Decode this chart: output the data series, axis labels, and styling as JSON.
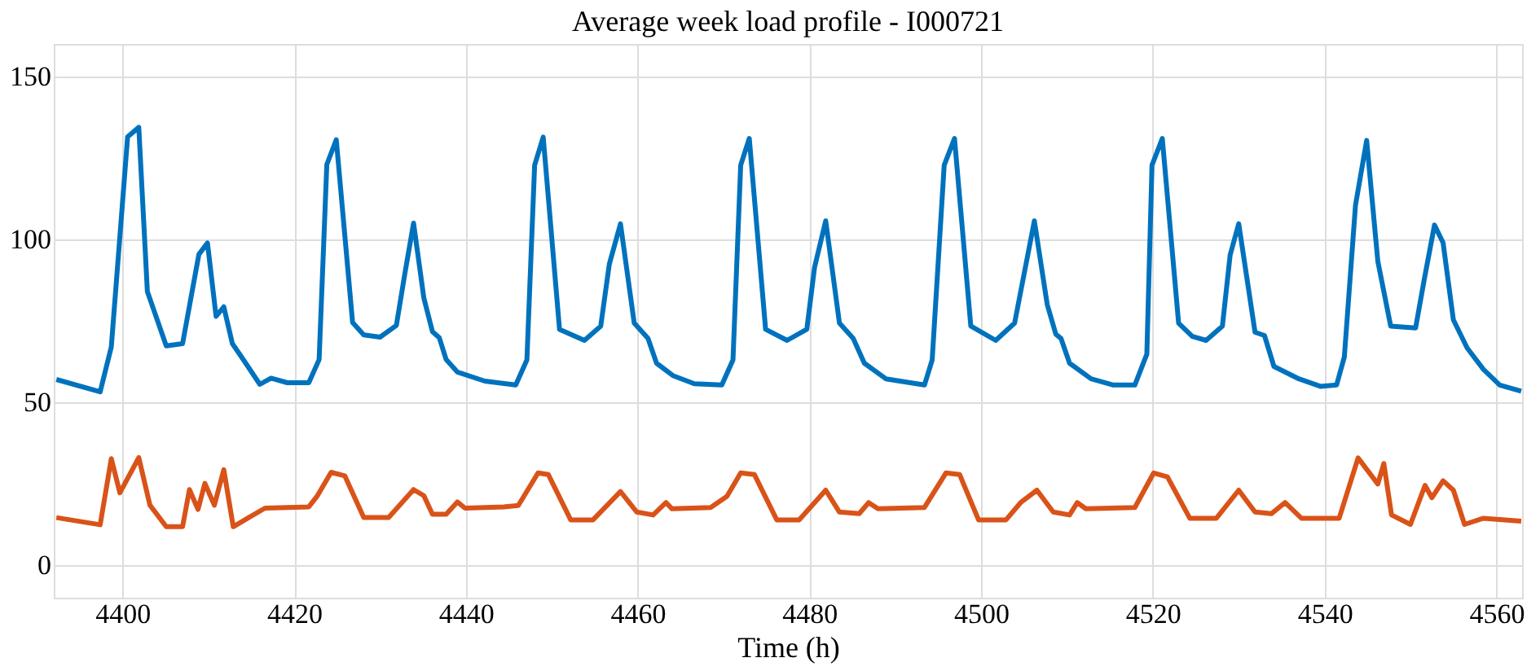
{
  "chart_data": {
    "type": "line",
    "title": "Average week load profile - I000721",
    "xlabel": "Time (h)",
    "xlim": [
      4392,
      4563
    ],
    "xticks": [
      4400,
      4420,
      4440,
      4460,
      4480,
      4500,
      4520,
      4540,
      4560
    ],
    "ylim": [
      -10,
      160
    ],
    "yticks": [
      0,
      50,
      100,
      150
    ],
    "grid": true,
    "marker": "none",
    "line_style": "solid",
    "series": [
      {
        "color": "#0072bd",
        "x": [
          4392.3,
          4397.4,
          4398.7,
          4400.6,
          4401.9,
          4402.9,
          4405.1,
          4407,
          4408.9,
          4409.9,
          4410.9,
          4411.8,
          4412.8,
          4414.1,
          4416,
          4417.3,
          4419.2,
          4421.7,
          4422.9,
          4423.8,
          4424.9,
          4426.8,
          4428.1,
          4430,
          4431.9,
          4432.9,
          4433.9,
          4435.1,
          4436.1,
          4436.9,
          4437.7,
          4439,
          4442.2,
          4445.8,
          4447.1,
          4448,
          4449,
          4450.9,
          4453.8,
          4455.7,
          4456.7,
          4458,
          4459.6,
          4461.2,
          4462.2,
          4464.1,
          4466.6,
          4469.8,
          4471.1,
          4472,
          4473,
          4474.9,
          4477.4,
          4479.7,
          4480.6,
          4481.9,
          4483.5,
          4485.1,
          4486.4,
          4488.9,
          4493.4,
          4494.3,
          4495.7,
          4496.9,
          4498.8,
          4501.7,
          4503.9,
          4506.2,
          4507.7,
          4508.7,
          4509.3,
          4510.3,
          4512.8,
          4515.4,
          4517.9,
          4519.3,
          4519.9,
          4521.1,
          4523,
          4524.6,
          4526.2,
          4528.1,
          4529,
          4530,
          4531.9,
          4533,
          4534.1,
          4537,
          4539.5,
          4541.4,
          4542.3,
          4543.6,
          4544.9,
          4546.2,
          4547.7,
          4550.6,
          4551.6,
          4552.8,
          4553.8,
          4555,
          4556.6,
          4558.5,
          4560.4,
          4562.9
        ],
        "values": [
          57,
          53.2,
          67,
          131.5,
          134.4,
          84,
          67.3,
          68,
          95.4,
          98.9,
          76.4,
          79.3,
          68,
          63,
          55.5,
          57.4,
          56,
          56,
          63.1,
          123,
          130.6,
          74.5,
          70.7,
          70,
          73.6,
          89.7,
          105,
          82,
          71.7,
          69.8,
          63.1,
          59.3,
          56.5,
          55.3,
          63,
          122.8,
          131.4,
          72.4,
          69,
          73.4,
          92.4,
          104.8,
          74.3,
          69.6,
          62,
          58.2,
          55.7,
          55.3,
          63,
          122.8,
          131,
          72.4,
          69,
          72.4,
          91.4,
          105.7,
          74.3,
          69.6,
          62,
          57.2,
          55.3,
          63,
          122.8,
          131,
          73.4,
          69,
          74.3,
          105.7,
          80,
          70.9,
          69.6,
          62,
          57.2,
          55.3,
          55.3,
          64.8,
          122.8,
          131,
          74.3,
          70.2,
          69,
          73.4,
          95.2,
          104.8,
          71.5,
          70.5,
          61,
          57.2,
          54.9,
          55.3,
          63.9,
          110.5,
          130.4,
          93.3,
          73.4,
          72.8,
          87.6,
          104.4,
          99,
          75.3,
          66.7,
          60.1,
          55.3,
          53.4
        ]
      },
      {
        "color": "#d95319",
        "x": [
          4392.3,
          4397.4,
          4398.7,
          4399.7,
          4401.9,
          4403.2,
          4405.1,
          4407,
          4407.8,
          4408.8,
          4409.6,
          4410.7,
          4411.8,
          4412.9,
          4414.7,
          4416.6,
          4421.7,
          4422.7,
          4424.3,
          4425.9,
          4428.1,
          4431,
          4433.9,
          4435.1,
          4436.1,
          4437.7,
          4439,
          4439.9,
          4444.4,
          4446.1,
          4448.4,
          4449.6,
          4452.2,
          4454.8,
          4458,
          4459.9,
          4461.8,
          4463.3,
          4464,
          4468.5,
          4470.4,
          4472,
          4473.6,
          4476.2,
          4478.8,
          4481.9,
          4483.5,
          4485.8,
          4486.9,
          4488,
          4493.4,
          4495.9,
          4497.5,
          4499.7,
          4502.9,
          4504.6,
          4506.5,
          4508.4,
          4510.3,
          4511.2,
          4512.2,
          4517.9,
          4520.1,
          4521.7,
          4524.3,
          4527.4,
          4530,
          4531.9,
          4533.8,
          4535.4,
          4537.3,
          4541.7,
          4543.9,
          4546.2,
          4546.9,
          4547.8,
          4550,
          4551.7,
          4552.5,
          4553.8,
          4555,
          4556.3,
          4558.5,
          4562.9
        ],
        "values": [
          14.6,
          12.4,
          32.7,
          22.2,
          33,
          18.4,
          11.8,
          11.8,
          23.2,
          17.1,
          25.1,
          18.4,
          29.3,
          11.8,
          14.6,
          17.5,
          17.9,
          21.3,
          28.5,
          27.4,
          14.6,
          14.6,
          23.2,
          21.3,
          15.6,
          15.6,
          19.4,
          17.5,
          17.9,
          18.3,
          28.3,
          27.8,
          13.9,
          13.9,
          22.6,
          16.3,
          15.4,
          19.2,
          17.3,
          17.7,
          21.1,
          28.3,
          27.8,
          13.9,
          13.9,
          23,
          16.3,
          15.8,
          19.2,
          17.3,
          17.7,
          28.3,
          27.8,
          13.9,
          13.9,
          19.2,
          23,
          16.3,
          15.4,
          19.2,
          17.3,
          17.7,
          28.3,
          27.1,
          14.4,
          14.4,
          23,
          16.3,
          15.8,
          19.2,
          14.4,
          14.4,
          32.9,
          24.9,
          31.2,
          15.4,
          12.5,
          24.5,
          20.7,
          25.9,
          23,
          12.5,
          14.4,
          13.5
        ]
      }
    ]
  }
}
